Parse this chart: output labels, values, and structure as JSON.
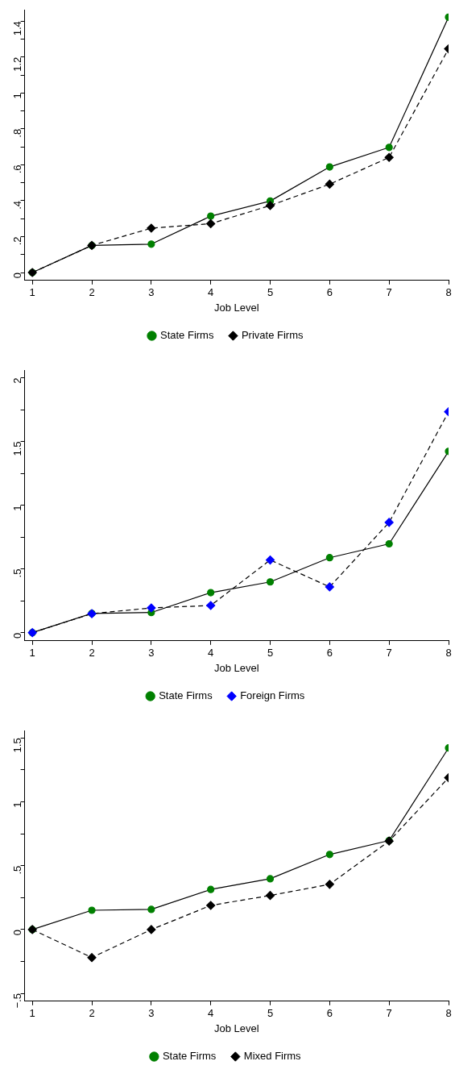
{
  "chart_data": [
    {
      "type": "line",
      "xlabel": "Job Level",
      "x": [
        1,
        2,
        3,
        4,
        5,
        6,
        7,
        8
      ],
      "xlim": [
        0.87,
        8
      ],
      "xticks": [
        1,
        2,
        3,
        4,
        5,
        6,
        7,
        8
      ],
      "ylim": [
        -0.044,
        1.464
      ],
      "yticks": [
        {
          "value": 0,
          "label": "0"
        },
        {
          "value": 0.1,
          "label": null
        },
        {
          "value": 0.2,
          "label": ".2"
        },
        {
          "value": 0.3,
          "label": null
        },
        {
          "value": 0.4,
          "label": ".4"
        },
        {
          "value": 0.5,
          "label": null
        },
        {
          "value": 0.6,
          "label": ".6"
        },
        {
          "value": 0.7,
          "label": null
        },
        {
          "value": 0.8,
          "label": ".8"
        },
        {
          "value": 0.9,
          "label": null
        },
        {
          "value": 1,
          "label": "1"
        },
        {
          "value": 1.1,
          "label": null
        },
        {
          "value": 1.2,
          "label": "1.2"
        },
        {
          "value": 1.3,
          "label": null
        },
        {
          "value": 1.4,
          "label": "1.4"
        }
      ],
      "grid": false,
      "legend": "bottom",
      "series": [
        {
          "name": "State Firms",
          "color": "#008000",
          "marker": "circle",
          "line_style": "solid",
          "values": [
            0,
            0.151,
            0.158,
            0.314,
            0.398,
            0.588,
            0.697,
            1.422
          ]
        },
        {
          "name": "Private Firms",
          "color": "#000000",
          "marker": "diamond",
          "line_style": "dashed",
          "values": [
            0,
            0.151,
            0.247,
            0.272,
            0.373,
            0.492,
            0.641,
            1.246
          ]
        }
      ]
    },
    {
      "type": "line",
      "xlabel": "Job Level",
      "x": [
        1,
        2,
        3,
        4,
        5,
        6,
        7,
        8
      ],
      "xlim": [
        0.87,
        8
      ],
      "xticks": [
        1,
        2,
        3,
        4,
        5,
        6,
        7,
        8
      ],
      "ylim": [
        -0.064,
        2.06
      ],
      "yticks": [
        {
          "value": 0,
          "label": "0"
        },
        {
          "value": 0.25,
          "label": null
        },
        {
          "value": 0.5,
          "label": ".5"
        },
        {
          "value": 0.75,
          "label": null
        },
        {
          "value": 1,
          "label": "1"
        },
        {
          "value": 1.25,
          "label": null
        },
        {
          "value": 1.5,
          "label": "1.5"
        },
        {
          "value": 1.75,
          "label": null
        },
        {
          "value": 2,
          "label": "2"
        }
      ],
      "grid": false,
      "legend": "bottom",
      "series": [
        {
          "name": "State Firms",
          "color": "#008000",
          "marker": "circle",
          "line_style": "solid",
          "values": [
            0,
            0.151,
            0.158,
            0.314,
            0.398,
            0.588,
            0.697,
            1.422
          ]
        },
        {
          "name": "Foreign Firms",
          "color": "#0000ff",
          "marker": "diamond",
          "line_style": "dashed",
          "values": [
            0,
            0.149,
            0.194,
            0.213,
            0.57,
            0.359,
            0.865,
            1.733
          ]
        }
      ]
    },
    {
      "type": "line",
      "xlabel": "Job Level",
      "x": [
        1,
        2,
        3,
        4,
        5,
        6,
        7,
        8
      ],
      "xlim": [
        0.87,
        8
      ],
      "xticks": [
        1,
        2,
        3,
        4,
        5,
        6,
        7,
        8
      ],
      "ylim": [
        -0.561,
        1.559
      ],
      "yticks": [
        {
          "value": -0.5,
          "label": "−.5"
        },
        {
          "value": -0.25,
          "label": null
        },
        {
          "value": 0,
          "label": "0"
        },
        {
          "value": 0.25,
          "label": null
        },
        {
          "value": 0.5,
          "label": ".5"
        },
        {
          "value": 0.75,
          "label": null
        },
        {
          "value": 1,
          "label": "1"
        },
        {
          "value": 1.25,
          "label": null
        },
        {
          "value": 1.5,
          "label": "1.5"
        }
      ],
      "grid": false,
      "legend": "bottom",
      "series": [
        {
          "name": "State Firms",
          "color": "#008000",
          "marker": "circle",
          "line_style": "solid",
          "values": [
            0,
            0.151,
            0.158,
            0.314,
            0.398,
            0.588,
            0.697,
            1.422
          ]
        },
        {
          "name": "Mixed Firms",
          "color": "#000000",
          "marker": "diamond",
          "line_style": "dashed",
          "values": [
            0,
            -0.219,
            0,
            0.189,
            0.267,
            0.354,
            0.693,
            1.189
          ]
        }
      ]
    }
  ]
}
